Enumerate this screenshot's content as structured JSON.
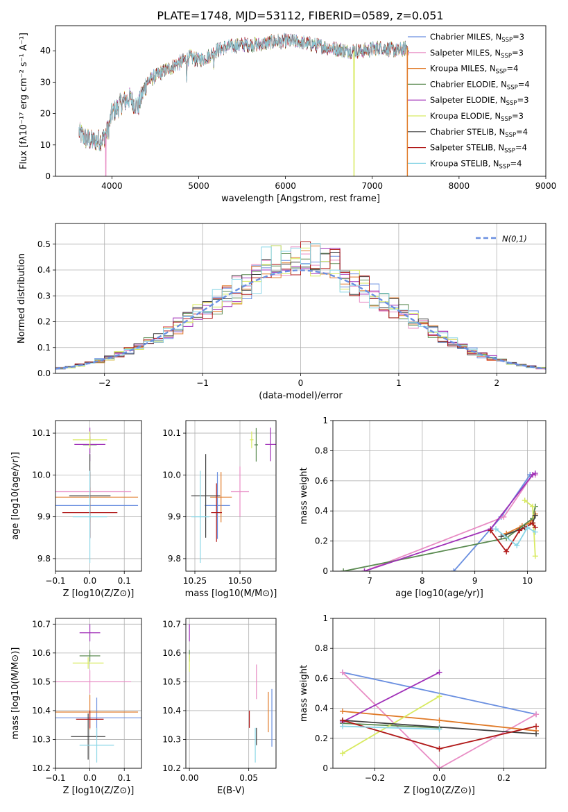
{
  "figure": {
    "title": "PLATE=1748, MJD=53112, FIBERID=0589, z=0.051"
  },
  "colors": {
    "Chabrier MILES": "#6a8fe0",
    "Salpeter MILES": "#e88cc4",
    "Kroupa MILES": "#e07a28",
    "Chabrier ELODIE": "#5a8a50",
    "Salpeter ELODIE": "#a030b8",
    "Kroupa ELODIE": "#d8ea60",
    "Chabrier STELIB": "#404040",
    "Salpeter STELIB": "#b01818",
    "Kroupa STELIB": "#8ad6e6"
  },
  "legend": {
    "entries": [
      {
        "name": "Chabrier MILES",
        "nssp": "3"
      },
      {
        "name": "Salpeter MILES",
        "nssp": "3"
      },
      {
        "name": "Kroupa MILES",
        "nssp": "4"
      },
      {
        "name": "Chabrier ELODIE",
        "nssp": "4"
      },
      {
        "name": "Salpeter ELODIE",
        "nssp": "3"
      },
      {
        "name": "Kroupa ELODIE",
        "nssp": "3"
      },
      {
        "name": "Chabrier STELIB",
        "nssp": "4"
      },
      {
        "name": "Salpeter STELIB",
        "nssp": "4"
      },
      {
        "name": "Kroupa STELIB",
        "nssp": "4"
      }
    ],
    "hist_label": "N(0,1)"
  },
  "chart_data": [
    {
      "id": "spectrum",
      "type": "line",
      "xlabel": "wavelength [Angstrom, rest frame]",
      "ylabel": "Flux [fλ10⁻¹⁷ erg cm⁻² s⁻¹ A⁻¹]",
      "xlim": [
        3350,
        9000
      ],
      "ylim": [
        0,
        48
      ],
      "xticks": [
        4000,
        5000,
        6000,
        7000,
        8000,
        9000
      ],
      "yticks": [
        0,
        10,
        20,
        30,
        40
      ],
      "grid": false,
      "legend_position": "right",
      "continuum": [
        [
          3620,
          14
        ],
        [
          3700,
          12
        ],
        [
          3800,
          11
        ],
        [
          3900,
          12
        ],
        [
          3960,
          15
        ],
        [
          4000,
          20
        ],
        [
          4100,
          23
        ],
        [
          4200,
          25
        ],
        [
          4300,
          22
        ],
        [
          4400,
          30
        ],
        [
          4500,
          32
        ],
        [
          4700,
          35
        ],
        [
          4900,
          38
        ],
        [
          5000,
          37
        ],
        [
          5100,
          38
        ],
        [
          5200,
          40
        ],
        [
          5300,
          41
        ],
        [
          5500,
          42
        ],
        [
          5700,
          42
        ],
        [
          5900,
          43
        ],
        [
          6100,
          43
        ],
        [
          6300,
          42
        ],
        [
          6500,
          41
        ],
        [
          6700,
          40
        ],
        [
          6900,
          40
        ],
        [
          7100,
          41
        ],
        [
          7300,
          40
        ],
        [
          7400,
          41
        ]
      ],
      "dips": [
        {
          "series": "Salpeter MILES",
          "x": 3930,
          "y": 0
        },
        {
          "series": "Kroupa ELODIE",
          "x": 6790,
          "y": 0
        },
        {
          "series": "Kroupa MILES",
          "x": 7405,
          "y": 0
        }
      ]
    },
    {
      "id": "residuals",
      "type": "bar",
      "xlabel": "(data-model)/error",
      "ylabel": "Normed distribution",
      "xlim": [
        -2.5,
        2.5
      ],
      "ylim": [
        0,
        0.58
      ],
      "xticks": [
        -2,
        -1,
        0,
        1,
        2
      ],
      "yticks": [
        0.0,
        0.1,
        0.2,
        0.3,
        0.4,
        0.5
      ],
      "grid": true,
      "bin_width": 0.1,
      "legend_position": "top-right"
    },
    {
      "id": "age_Z",
      "type": "scatter",
      "xlabel": "Z [log10(Z/Z⊙)]",
      "ylabel": "age [log10(age/yr)]",
      "xlim": [
        -0.1,
        0.15
      ],
      "ylim": [
        9.77,
        10.13
      ],
      "xticks": [
        -0.1,
        0.0,
        0.1
      ],
      "yticks": [
        9.8,
        9.9,
        10.0,
        10.1
      ],
      "grid": true,
      "points": [
        {
          "s": "Chabrier MILES",
          "x": 0.0,
          "xe": 0.14,
          "y": 9.927,
          "ye": 0.08
        },
        {
          "s": "Salpeter MILES",
          "x": 0.0,
          "xe": 0.12,
          "y": 9.96,
          "ye": 0.05
        },
        {
          "s": "Kroupa MILES",
          "x": 0.0,
          "xe": 0.14,
          "y": 9.947,
          "ye": 0.06
        },
        {
          "s": "Chabrier ELODIE",
          "x": 0.0,
          "xe": 0.02,
          "y": 10.072,
          "ye": 0.02
        },
        {
          "s": "Salpeter ELODIE",
          "x": 0.0,
          "xe": 0.045,
          "y": 10.073,
          "ye": 0.04
        },
        {
          "s": "Kroupa ELODIE",
          "x": 0.0,
          "xe": 0.05,
          "y": 10.084,
          "ye": 0.02
        },
        {
          "s": "Chabrier STELIB",
          "x": 0.0,
          "xe": 0.06,
          "y": 9.95,
          "ye": 0.1
        },
        {
          "s": "Salpeter STELIB",
          "x": 0.0,
          "xe": 0.08,
          "y": 9.91,
          "ye": 0.06
        },
        {
          "s": "Kroupa STELIB",
          "x": 0.0,
          "xe": 0.05,
          "y": 9.9,
          "ye": 0.11
        }
      ]
    },
    {
      "id": "age_mass",
      "type": "scatter",
      "xlabel": "mass [log10(M/M⊙)]",
      "ylabel": "",
      "xlim": [
        10.2,
        10.7
      ],
      "ylim": [
        9.77,
        10.13
      ],
      "xticks": [
        10.25,
        10.5
      ],
      "yticks": [
        9.8,
        9.9,
        10.0,
        10.1
      ],
      "grid": true,
      "points": [
        {
          "s": "Chabrier MILES",
          "x": 10.375,
          "xe": 0.07,
          "y": 9.927,
          "ye": 0.08
        },
        {
          "s": "Salpeter MILES",
          "x": 10.5,
          "xe": 0.05,
          "y": 9.96,
          "ye": 0.06
        },
        {
          "s": "Kroupa MILES",
          "x": 10.395,
          "xe": 0.06,
          "y": 9.947,
          "ye": 0.06
        },
        {
          "s": "Chabrier ELODIE",
          "x": 10.59,
          "xe": 0.01,
          "y": 10.072,
          "ye": 0.04
        },
        {
          "s": "Salpeter ELODIE",
          "x": 10.67,
          "xe": 0.03,
          "y": 10.073,
          "ye": 0.04
        },
        {
          "s": "Kroupa ELODIE",
          "x": 10.565,
          "xe": 0.01,
          "y": 10.084,
          "ye": 0.02
        },
        {
          "s": "Chabrier STELIB",
          "x": 10.31,
          "xe": 0.08,
          "y": 9.95,
          "ye": 0.1
        },
        {
          "s": "Salpeter STELIB",
          "x": 10.37,
          "xe": 0.03,
          "y": 9.91,
          "ye": 0.07
        },
        {
          "s": "Kroupa STELIB",
          "x": 10.28,
          "xe": 0.05,
          "y": 9.9,
          "ye": 0.11
        }
      ]
    },
    {
      "id": "weight_age",
      "type": "line",
      "xlabel": "age [log10(age/yr)]",
      "ylabel": "mass weight",
      "xlim": [
        6.3,
        10.35
      ],
      "ylim": [
        0,
        1.0
      ],
      "xticks": [
        7,
        8,
        9,
        10
      ],
      "yticks": [
        0.0,
        0.2,
        0.4,
        0.6,
        0.8,
        1.0
      ],
      "grid": true,
      "series": [
        {
          "name": "Chabrier MILES",
          "points": [
            [
              8.6,
              0
            ],
            [
              9.5,
              0.36
            ],
            [
              10.05,
              0.64
            ],
            [
              10.15,
              0.64
            ]
          ]
        },
        {
          "name": "Salpeter MILES",
          "points": [
            [
              6.9,
              0
            ],
            [
              9.55,
              0.36
            ],
            [
              10.1,
              0.64
            ],
            [
              10.15,
              0.64
            ]
          ]
        },
        {
          "name": "Kroupa MILES",
          "points": [
            [
              9.6,
              0.25
            ],
            [
              9.9,
              0.3
            ],
            [
              10.05,
              0.32
            ],
            [
              10.15,
              0.38
            ]
          ]
        },
        {
          "name": "Chabrier ELODIE",
          "points": [
            [
              6.5,
              0
            ],
            [
              9.6,
              0.22
            ],
            [
              10.1,
              0.35
            ],
            [
              10.15,
              0.43
            ]
          ]
        },
        {
          "name": "Salpeter ELODIE",
          "points": [
            [
              6.9,
              0
            ],
            [
              9.3,
              0.28
            ],
            [
              10.1,
              0.64
            ],
            [
              10.15,
              0.65
            ]
          ]
        },
        {
          "name": "Kroupa ELODIE",
          "points": [
            [
              9.95,
              0.47
            ],
            [
              10.1,
              0.43
            ],
            [
              10.15,
              0.1
            ]
          ]
        },
        {
          "name": "Chabrier STELIB",
          "points": [
            [
              9.5,
              0.23
            ],
            [
              9.95,
              0.29
            ],
            [
              10.1,
              0.32
            ],
            [
              10.15,
              0.37
            ]
          ]
        },
        {
          "name": "Salpeter STELIB",
          "points": [
            [
              9.3,
              0.27
            ],
            [
              9.6,
              0.13
            ],
            [
              9.85,
              0.27
            ],
            [
              10.1,
              0.32
            ],
            [
              10.15,
              0.29
            ]
          ]
        },
        {
          "name": "Kroupa STELIB",
          "points": [
            [
              9.4,
              0.28
            ],
            [
              9.8,
              0.17
            ],
            [
              10.0,
              0.29
            ],
            [
              10.15,
              0.26
            ]
          ]
        }
      ]
    },
    {
      "id": "mass_Z",
      "type": "scatter",
      "xlabel": "Z [log10(Z/Z⊙)]",
      "ylabel": "mass [log10(M/M⊙)]",
      "xlim": [
        -0.1,
        0.15
      ],
      "ylim": [
        10.2,
        10.72
      ],
      "xticks": [
        -0.1,
        0.0,
        0.1
      ],
      "yticks": [
        10.2,
        10.3,
        10.4,
        10.5,
        10.6,
        10.7
      ],
      "grid": true,
      "points": [
        {
          "s": "Chabrier MILES",
          "x": 0.02,
          "xe": 0.13,
          "y": 10.375,
          "ye": 0.07
        },
        {
          "s": "Salpeter MILES",
          "x": 0.0,
          "xe": 0.12,
          "y": 10.5,
          "ye": 0.04
        },
        {
          "s": "Kroupa MILES",
          "x": 0.0,
          "xe": 0.14,
          "y": 10.395,
          "ye": 0.06
        },
        {
          "s": "Chabrier ELODIE",
          "x": 0.0,
          "xe": 0.03,
          "y": 10.59,
          "ye": 0.02
        },
        {
          "s": "Salpeter ELODIE",
          "x": 0.0,
          "xe": 0.03,
          "y": 10.67,
          "ye": 0.03
        },
        {
          "s": "Kroupa ELODIE",
          "x": -0.005,
          "xe": 0.045,
          "y": 10.565,
          "ye": 0.02
        },
        {
          "s": "Chabrier STELIB",
          "x": -0.005,
          "xe": 0.05,
          "y": 10.31,
          "ye": 0.08
        },
        {
          "s": "Salpeter STELIB",
          "x": 0.0,
          "xe": 0.04,
          "y": 10.37,
          "ye": 0.03
        },
        {
          "s": "Kroupa STELIB",
          "x": 0.02,
          "xe": 0.05,
          "y": 10.28,
          "ye": 0.06
        }
      ]
    },
    {
      "id": "mass_ebv",
      "type": "scatter",
      "xlabel": "E(B-V)",
      "ylabel": "",
      "xlim": [
        -0.003,
        0.073
      ],
      "ylim": [
        10.2,
        10.72
      ],
      "xticks": [
        0.0,
        0.05
      ],
      "yticks": [
        10.2,
        10.3,
        10.4,
        10.5,
        10.6,
        10.7
      ],
      "grid": true,
      "points": [
        {
          "s": "Chabrier MILES",
          "x": 0.0695,
          "y": 10.375,
          "ye": 0.1
        },
        {
          "s": "Salpeter MILES",
          "x": 0.0565,
          "y": 10.5,
          "ye": 0.06
        },
        {
          "s": "Kroupa MILES",
          "x": 0.0665,
          "y": 10.395,
          "ye": 0.07
        },
        {
          "s": "Chabrier ELODIE",
          "x": 0.0,
          "y": 10.59,
          "ye": 0.02
        },
        {
          "s": "Salpeter ELODIE",
          "x": 0.0,
          "y": 10.67,
          "ye": 0.03
        },
        {
          "s": "Kroupa ELODIE",
          "x": 0.0,
          "y": 10.565,
          "ye": 0.03
        },
        {
          "s": "Chabrier STELIB",
          "x": 0.0565,
          "y": 10.31,
          "ye": 0.03
        },
        {
          "s": "Salpeter STELIB",
          "x": 0.0505,
          "y": 10.37,
          "ye": 0.03
        },
        {
          "s": "Kroupa STELIB",
          "x": 0.0555,
          "y": 10.28,
          "ye": 0.06
        }
      ]
    },
    {
      "id": "weight_Z",
      "type": "line",
      "xlabel": "Z [log10(Z/Z⊙)]",
      "ylabel": "mass weight",
      "xlim": [
        -0.33,
        0.33
      ],
      "ylim": [
        0,
        1.0
      ],
      "xticks": [
        -0.2,
        0.0,
        0.2
      ],
      "yticks": [
        0.0,
        0.2,
        0.4,
        0.6,
        0.8,
        1.0
      ],
      "grid": true,
      "series": [
        {
          "name": "Chabrier MILES",
          "points": [
            [
              -0.3,
              0.64
            ],
            [
              0.3,
              0.36
            ]
          ]
        },
        {
          "name": "Salpeter MILES",
          "points": [
            [
              -0.3,
              0.64
            ],
            [
              0.0,
              0.0
            ],
            [
              0.3,
              0.36
            ]
          ]
        },
        {
          "name": "Kroupa MILES",
          "points": [
            [
              -0.3,
              0.38
            ],
            [
              0.0,
              0.32
            ],
            [
              0.3,
              0.25
            ]
          ]
        },
        {
          "name": "Chabrier ELODIE",
          "points": [
            [
              -0.3,
              0.3
            ],
            [
              0.0,
              0.27
            ]
          ]
        },
        {
          "name": "Salpeter ELODIE",
          "points": [
            [
              -0.3,
              0.31
            ],
            [
              0.0,
              0.64
            ]
          ]
        },
        {
          "name": "Kroupa ELODIE",
          "points": [
            [
              -0.3,
              0.1
            ],
            [
              0.0,
              0.48
            ]
          ]
        },
        {
          "name": "Chabrier STELIB",
          "points": [
            [
              -0.3,
              0.32
            ],
            [
              0.3,
              0.23
            ]
          ]
        },
        {
          "name": "Salpeter STELIB",
          "points": [
            [
              -0.3,
              0.32
            ],
            [
              0.0,
              0.13
            ],
            [
              0.3,
              0.28
            ]
          ]
        },
        {
          "name": "Kroupa STELIB",
          "points": [
            [
              -0.3,
              0.28
            ],
            [
              0.0,
              0.26
            ]
          ]
        }
      ]
    }
  ]
}
